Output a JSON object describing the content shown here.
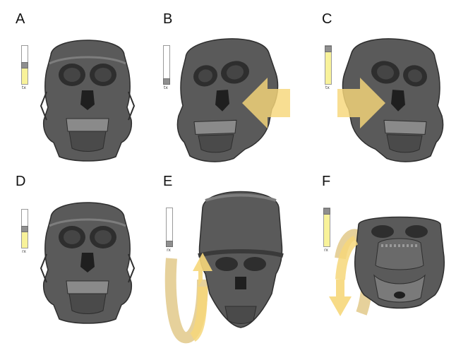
{
  "figure": {
    "colors": {
      "skull": "#5a5a5a",
      "skull_dark": "#2e2e2e",
      "skull_light": "#7d7d7d",
      "arrow": "#f6d77a",
      "slider_fill": "#f8f29a"
    },
    "panels": [
      {
        "id": "A",
        "label": "A",
        "control": "tx",
        "slider_value": 0.5,
        "view": "front",
        "arrow": "none"
      },
      {
        "id": "B",
        "label": "B",
        "control": "tx",
        "slider_value": 0.0,
        "view": "front-turned-left",
        "arrow": "left"
      },
      {
        "id": "C",
        "label": "C",
        "control": "tx",
        "slider_value": 1.0,
        "view": "front-turned-right",
        "arrow": "right"
      },
      {
        "id": "D",
        "label": "D",
        "control": "rx",
        "slider_value": 0.5,
        "view": "front",
        "arrow": "none"
      },
      {
        "id": "E",
        "label": "E",
        "control": "rx",
        "slider_value": 0.0,
        "view": "top-tilted",
        "arrow": "rotate-up"
      },
      {
        "id": "F",
        "label": "F",
        "control": "rx",
        "slider_value": 1.0,
        "view": "bottom-tilted",
        "arrow": "rotate-down"
      }
    ]
  }
}
